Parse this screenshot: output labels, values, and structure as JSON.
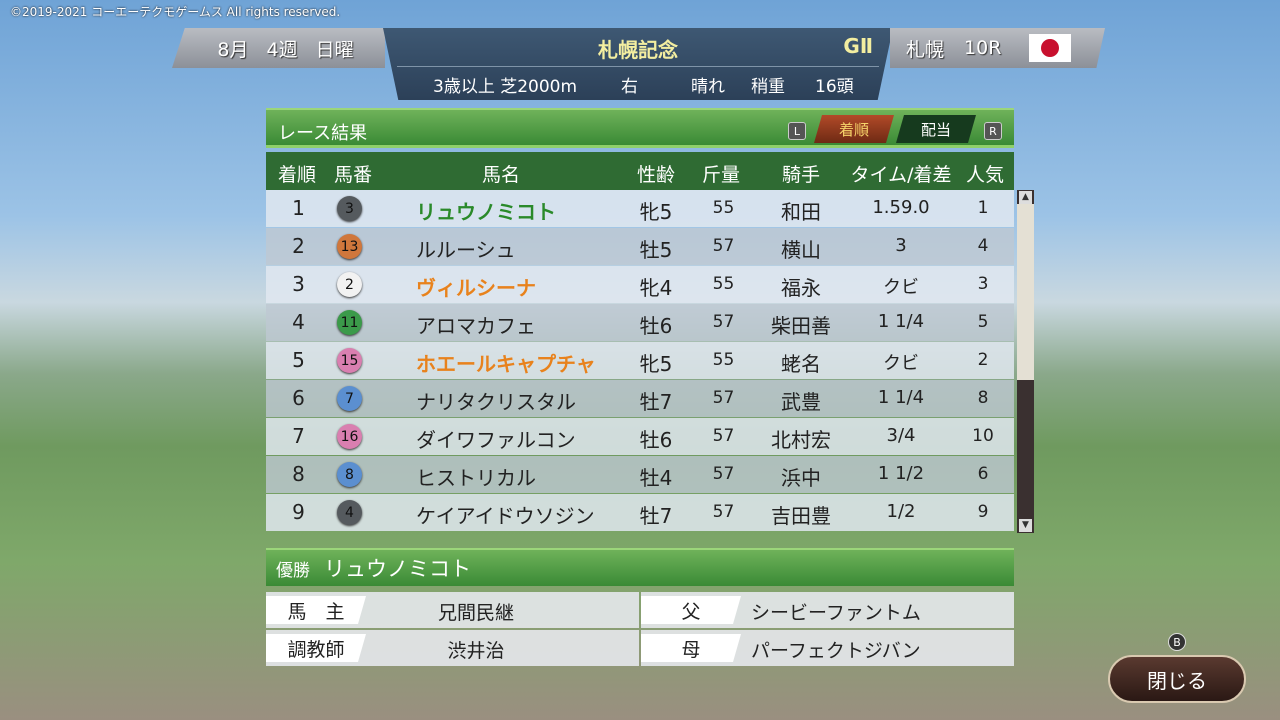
{
  "copyright": "©2019-2021 コーエーテクモゲームス All rights reserved.",
  "race": {
    "month": "8月",
    "week": "4週",
    "day": "日曜",
    "name": "札幌記念",
    "grade": "GⅡ",
    "track": "札幌",
    "race_no": "10R",
    "conditions": "3歳以上 芝2000m",
    "direction": "右",
    "weather": "晴れ",
    "going": "稍重",
    "runners": "16頭",
    "flag": "japan-flag"
  },
  "panel": {
    "title": "レース結果",
    "key_left": "L",
    "key_right": "R",
    "tabs": [
      {
        "label": "着順",
        "active": true
      },
      {
        "label": "配当",
        "active": false
      }
    ]
  },
  "columns": [
    "着順",
    "馬番",
    "馬名",
    "性齢",
    "斤量",
    "騎手",
    "タイム/着差",
    "人気"
  ],
  "rows": [
    {
      "pos": "1",
      "num": "3",
      "color": "#555a5e",
      "name": "リュウノミコト",
      "name_color": "#2a8a2a",
      "sexage": "牝5",
      "weight": "55",
      "jockey": "和田",
      "time": "1.59.0",
      "pop": "1"
    },
    {
      "pos": "2",
      "num": "13",
      "color": "#d0773c",
      "name": "ルルーシュ",
      "name_color": "#222",
      "sexage": "牡5",
      "weight": "57",
      "jockey": "横山",
      "time": "3",
      "pop": "4"
    },
    {
      "pos": "3",
      "num": "2",
      "color": "#f2f2f2",
      "name": "ヴィルシーナ",
      "name_color": "#e8821c",
      "sexage": "牝4",
      "weight": "55",
      "jockey": "福永",
      "time": "クビ",
      "pop": "3"
    },
    {
      "pos": "4",
      "num": "11",
      "color": "#3b9a4a",
      "name": "アロマカフェ",
      "name_color": "#222",
      "sexage": "牡6",
      "weight": "57",
      "jockey": "柴田善",
      "time": "1 1/4",
      "pop": "5"
    },
    {
      "pos": "5",
      "num": "15",
      "color": "#d97fb0",
      "name": "ホエールキャプチャ",
      "name_color": "#e8821c",
      "sexage": "牝5",
      "weight": "55",
      "jockey": "蛯名",
      "time": "クビ",
      "pop": "2"
    },
    {
      "pos": "6",
      "num": "7",
      "color": "#5b8fd0",
      "name": "ナリタクリスタル",
      "name_color": "#222",
      "sexage": "牡7",
      "weight": "57",
      "jockey": "武豊",
      "time": "1 1/4",
      "pop": "8"
    },
    {
      "pos": "7",
      "num": "16",
      "color": "#d97fb0",
      "name": "ダイワファルコン",
      "name_color": "#222",
      "sexage": "牡6",
      "weight": "57",
      "jockey": "北村宏",
      "time": "3/4",
      "pop": "10"
    },
    {
      "pos": "8",
      "num": "8",
      "color": "#5b8fd0",
      "name": "ヒストリカル",
      "name_color": "#222",
      "sexage": "牡4",
      "weight": "57",
      "jockey": "浜中",
      "time": "1 1/2",
      "pop": "6"
    },
    {
      "pos": "9",
      "num": "4",
      "color": "#555a5e",
      "name": "ケイアイドウソジン",
      "name_color": "#222",
      "sexage": "牡7",
      "weight": "57",
      "jockey": "吉田豊",
      "time": "1/2",
      "pop": "9"
    }
  ],
  "scroll_fraction": 0.5,
  "winner": {
    "label": "優勝",
    "name": "リュウノミコト",
    "owner_label": "馬　主",
    "owner": "兄間民継",
    "trainer_label": "調教師",
    "trainer": "渋井治",
    "sire_label": "父",
    "sire": "シービーファントム",
    "dam_label": "母",
    "dam": "パーフェクトジバン"
  },
  "close": {
    "key": "B",
    "label": "閉じる"
  }
}
